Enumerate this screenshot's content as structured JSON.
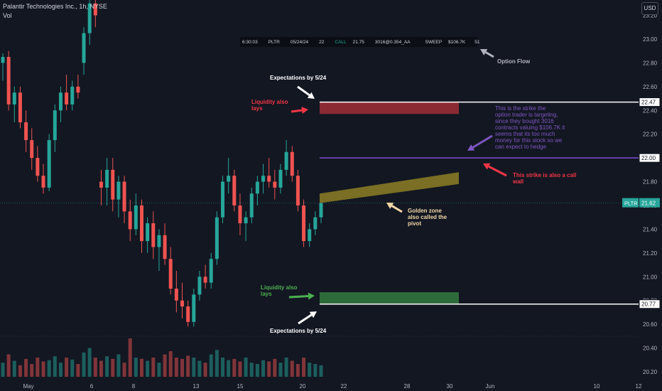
{
  "header": {
    "title": "Palantir Technologies Inc., 1h, NYSE",
    "volume_label": "Vol",
    "currency": "USD"
  },
  "option_flow": {
    "time": "6:30:03",
    "ticker": "PLTR",
    "expiry": "05/24/24",
    "strike": "22",
    "type": "CALL",
    "price": "21.75",
    "size": "3016@0.354_AA",
    "kind": "SWEEP",
    "premium": "$106.7K",
    "extra": "51"
  },
  "annotations": {
    "option_flow": "Option Flow",
    "expectations_top": "Expectations by 5/24",
    "expectations_bottom": "Expectations by 5/24",
    "liquidity_top": "Liquidity also\nlays",
    "liquidity_bottom": "Liquidity also\nlays",
    "strike_target": "This is the strike the\noption trader is targeting,\nsince they bought 3016\ncontracts valuing $106.7K it\nseems that its too much\nmoney for this stock so we\ncan expect to hedge",
    "call_wall": "This strike is also a call\nwall",
    "golden_zone": "Golden zone\nalso called the\npivot"
  },
  "colors": {
    "background": "#131722",
    "up": "#26a69a",
    "down": "#ef5350",
    "grid": "#1e222d",
    "liquidity_top": "#8b2a33",
    "liquidity_bottom": "#2e6b3a",
    "golden_zone": "#7a6f24",
    "strike_line": "#7b4fd6",
    "note_red": "#f23645",
    "note_purple": "#7e57c2",
    "note_green": "#4caf50",
    "note_yellow": "#f2d8a7"
  },
  "chart_data": {
    "type": "candlestick",
    "symbol": "PLTR",
    "interval": "1h",
    "y_ticks": [
      20.2,
      20.4,
      20.6,
      20.8,
      21.0,
      21.2,
      21.4,
      21.6,
      21.8,
      22.0,
      22.2,
      22.4,
      22.6,
      22.8,
      23.0,
      23.2
    ],
    "ylim": [
      20.16,
      23.4
    ],
    "x_ticks": [
      "May",
      "6",
      "8",
      "13",
      "15",
      "20",
      "22",
      "28",
      "30",
      "Jun",
      "10",
      "12"
    ],
    "price_labels": [
      {
        "label": "22.47",
        "value": 22.47
      },
      {
        "label": "22.00",
        "value": 22.0
      },
      {
        "label": "20.77",
        "value": 20.77
      }
    ],
    "last_price": {
      "symbol": "PLTR",
      "label": "21.62",
      "value": 21.62
    },
    "levels": [
      {
        "name": "expectation-high",
        "value": 22.47
      },
      {
        "name": "strike",
        "value": 22.0
      },
      {
        "name": "expectation-low",
        "value": 20.77
      }
    ],
    "zones": [
      {
        "name": "liquidity-top",
        "from": 22.37,
        "to": 22.47
      },
      {
        "name": "liquidity-bottom",
        "from": 20.77,
        "to": 20.87
      },
      {
        "name": "golden-zone",
        "from_low": 21.62,
        "from_high": 21.7,
        "to_low": 21.78,
        "to_high": 21.88
      }
    ],
    "candles": [
      [
        22.8,
        22.88,
        22.65,
        22.85
      ],
      [
        22.85,
        22.9,
        22.4,
        22.45
      ],
      [
        22.45,
        22.6,
        22.3,
        22.55
      ],
      [
        22.55,
        22.6,
        22.25,
        22.3
      ],
      [
        22.3,
        22.4,
        22.05,
        22.15
      ],
      [
        22.15,
        22.25,
        21.9,
        22.0
      ],
      [
        22.0,
        22.1,
        21.8,
        21.85
      ],
      [
        21.85,
        21.95,
        21.7,
        21.75
      ],
      [
        21.75,
        22.2,
        21.72,
        22.15
      ],
      [
        22.15,
        22.45,
        22.05,
        22.4
      ],
      [
        22.4,
        22.6,
        22.3,
        22.55
      ],
      [
        22.55,
        22.7,
        22.4,
        22.45
      ],
      [
        22.45,
        22.65,
        22.4,
        22.6
      ],
      [
        22.6,
        22.7,
        22.5,
        22.55
      ],
      [
        22.8,
        23.1,
        22.7,
        23.05
      ],
      [
        23.05,
        23.35,
        22.95,
        23.3
      ],
      [
        23.3,
        23.4,
        23.1,
        23.2
      ],
      [
        21.8,
        21.9,
        21.6,
        21.75
      ],
      [
        21.75,
        22.0,
        21.6,
        21.9
      ],
      [
        21.9,
        22.0,
        21.55,
        21.65
      ],
      [
        21.65,
        21.85,
        21.5,
        21.8
      ],
      [
        21.8,
        21.85,
        21.45,
        21.55
      ],
      [
        21.55,
        21.65,
        21.3,
        21.4
      ],
      [
        21.4,
        21.7,
        21.35,
        21.6
      ],
      [
        21.6,
        21.65,
        21.2,
        21.3
      ],
      [
        21.3,
        21.5,
        21.2,
        21.45
      ],
      [
        21.45,
        21.55,
        21.15,
        21.25
      ],
      [
        21.25,
        21.4,
        21.05,
        21.35
      ],
      [
        21.35,
        21.45,
        21.1,
        21.15
      ],
      [
        21.15,
        21.25,
        20.85,
        20.9
      ],
      [
        20.9,
        21.05,
        20.7,
        20.8
      ],
      [
        20.8,
        20.95,
        20.65,
        20.75
      ],
      [
        20.75,
        20.8,
        20.58,
        20.62
      ],
      [
        20.62,
        20.9,
        20.58,
        20.85
      ],
      [
        20.85,
        21.05,
        20.8,
        21.0
      ],
      [
        21.0,
        21.1,
        20.9,
        20.95
      ],
      [
        20.95,
        21.2,
        20.9,
        21.15
      ],
      [
        21.15,
        21.55,
        21.1,
        21.5
      ],
      [
        21.5,
        21.85,
        21.45,
        21.8
      ],
      [
        21.8,
        22.0,
        21.7,
        21.85
      ],
      [
        21.85,
        21.9,
        21.55,
        21.6
      ],
      [
        21.6,
        21.7,
        21.35,
        21.45
      ],
      [
        21.45,
        21.55,
        21.3,
        21.5
      ],
      [
        21.5,
        21.75,
        21.45,
        21.7
      ],
      [
        21.7,
        21.85,
        21.6,
        21.8
      ],
      [
        21.8,
        21.95,
        21.7,
        21.85
      ],
      [
        21.85,
        22.0,
        21.75,
        21.8
      ],
      [
        21.8,
        21.9,
        21.65,
        21.75
      ],
      [
        21.75,
        21.95,
        21.7,
        21.9
      ],
      [
        21.9,
        22.15,
        21.85,
        22.05
      ],
      [
        22.05,
        22.1,
        21.8,
        21.85
      ],
      [
        21.85,
        21.9,
        21.55,
        21.6
      ],
      [
        21.6,
        21.65,
        21.25,
        21.3
      ],
      [
        21.3,
        21.45,
        21.25,
        21.4
      ],
      [
        21.4,
        21.55,
        21.35,
        21.5
      ],
      [
        21.5,
        21.68,
        21.45,
        21.62
      ]
    ],
    "volumes": [
      0.22,
      0.35,
      0.25,
      0.18,
      0.28,
      0.2,
      0.3,
      0.24,
      0.26,
      0.32,
      0.22,
      0.3,
      0.27,
      0.2,
      0.38,
      0.45,
      0.3,
      0.25,
      0.32,
      0.28,
      0.35,
      0.22,
      0.6,
      0.3,
      0.28,
      0.25,
      0.3,
      0.22,
      0.35,
      0.4,
      0.3,
      0.28,
      0.33,
      0.3,
      0.25,
      0.22,
      0.35,
      0.42,
      0.3,
      0.26,
      0.28,
      0.24,
      0.3,
      0.22,
      0.2,
      0.26,
      0.24,
      0.28,
      0.22,
      0.3,
      0.25,
      0.2,
      0.3,
      0.22,
      0.2,
      0.18
    ]
  }
}
